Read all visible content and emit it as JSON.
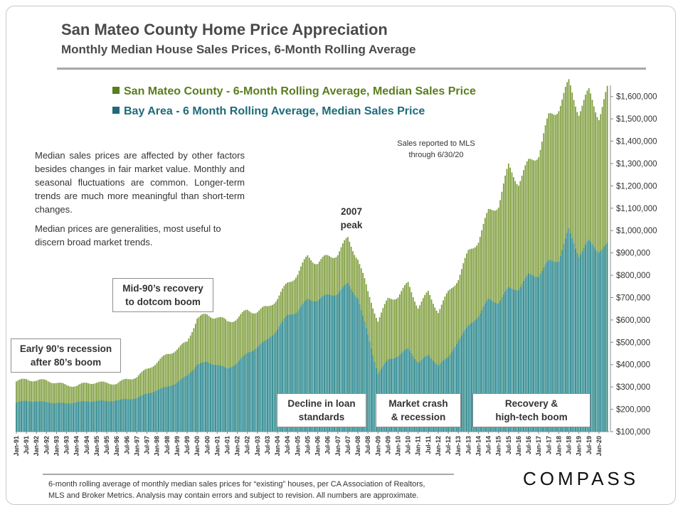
{
  "header": {
    "title": "San Mateo County Home Price Appreciation",
    "subtitle": "Monthly Median House Sales Prices, 6-Month Rolling Average"
  },
  "colors": {
    "san_mateo": "#7a9a35",
    "bay_area": "#2a8a9a"
  },
  "annotations": {
    "mls_line1": "Sales reported to MLS",
    "mls_line2": "through 6/30/20",
    "note_p1": "Median sales prices are affected by other factors besides changes in fair market value. Monthly and seasonal fluctuations are common. Longer-term trends are much more meaningful than short-term changes.",
    "note_p2": "Median prices are generalities, most useful to discern broad market trends.",
    "peak_line1": "2007",
    "peak_line2": "peak",
    "recession_line1": "Early 90’s recession",
    "recession_line2": "after 80’s boom",
    "recovery90s_line1": "Mid-90’s recovery",
    "recovery90s_line2": "to dotcom boom",
    "decline_line1": "Decline in loan",
    "decline_line2": "standards",
    "crash_line1": "Market crash",
    "crash_line2": "& recession",
    "hightech_line1": "Recovery &",
    "hightech_line2": "high-tech boom"
  },
  "footer": {
    "line1": "6-month rolling average of monthly median sales prices for “existing” houses, per CA Association of Realtors,",
    "line2": "MLS and Broker Metrics.  Analysis may contain errors and subject to revision. All numbers are approximate.",
    "logo": "COMPASS"
  },
  "chart_data": {
    "type": "bar",
    "grid": false,
    "x_range": [
      "Jan-91",
      "Jun-20"
    ],
    "ylim": [
      100000,
      1650000
    ],
    "y_ticks": [
      "$100,000",
      "$200,000",
      "$300,000",
      "$400,000",
      "$500,000",
      "$600,000",
      "$700,000",
      "$800,000",
      "$900,000",
      "$1,000,000",
      "$1,100,000",
      "$1,200,000",
      "$1,300,000",
      "$1,400,000",
      "$1,500,000",
      "$1,600,000"
    ],
    "y_tick_values": [
      100000,
      200000,
      300000,
      400000,
      500000,
      600000,
      700000,
      800000,
      900000,
      1000000,
      1100000,
      1200000,
      1300000,
      1400000,
      1500000,
      1600000
    ],
    "x_tick_labels": [
      "Jan-91",
      "Jul-91",
      "Jan-92",
      "Jul-92",
      "Jan-93",
      "Jul-93",
      "Jan-94",
      "Jul-94",
      "Jan-95",
      "Jul-95",
      "Jan-96",
      "Jul-96",
      "Jan-97",
      "Jul-97",
      "Jan-98",
      "Jul-98",
      "Jan-99",
      "Jul-99",
      "Jan-00",
      "Jul-00",
      "Jan-01",
      "Jul-01",
      "Jan-02",
      "Jul-02",
      "Jan-03",
      "Jul-03",
      "Jan-04",
      "Jul-04",
      "Jan-05",
      "Jul-05",
      "Jan-06",
      "Jul-06",
      "Jan-07",
      "Jul-07",
      "Jan-08",
      "Jul-08",
      "Jan-09",
      "Jul-09",
      "Jan-10",
      "Jul-10",
      "Jan-11",
      "Jul-11",
      "Jan-12",
      "Jul-12",
      "Jan-13",
      "Jul-13",
      "Jan-14",
      "Jul-14",
      "Jan-15",
      "Jul-15",
      "Jan-16",
      "Jul-16",
      "Jan-17",
      "Jul-17",
      "Jan-18",
      "Jul-18",
      "Jan-19",
      "Jul-19",
      "Jan-20"
    ],
    "x_tick_values": [
      1991.0,
      1991.5,
      1992.0,
      1992.5,
      1993.0,
      1993.5,
      1994.0,
      1994.5,
      1995.0,
      1995.5,
      1996.0,
      1996.5,
      1997.0,
      1997.5,
      1998.0,
      1998.5,
      1999.0,
      1999.5,
      2000.0,
      2000.5,
      2001.0,
      2001.5,
      2002.0,
      2002.5,
      2003.0,
      2003.5,
      2004.0,
      2004.5,
      2005.0,
      2005.5,
      2006.0,
      2006.5,
      2007.0,
      2007.5,
      2008.0,
      2008.5,
      2009.0,
      2009.5,
      2010.0,
      2010.5,
      2011.0,
      2011.5,
      2012.0,
      2012.5,
      2013.0,
      2013.5,
      2014.0,
      2014.5,
      2015.0,
      2015.5,
      2016.0,
      2016.5,
      2017.0,
      2017.5,
      2018.0,
      2018.5,
      2019.0,
      2019.5,
      2020.0
    ],
    "x": [
      1991.0,
      1991.5,
      1992.0,
      1992.5,
      1993.0,
      1993.5,
      1994.0,
      1994.5,
      1995.0,
      1995.5,
      1996.0,
      1996.5,
      1997.0,
      1997.5,
      1998.0,
      1998.5,
      1999.0,
      1999.5,
      2000.0,
      2000.5,
      2001.0,
      2001.5,
      2002.0,
      2002.5,
      2003.0,
      2003.5,
      2004.0,
      2004.5,
      2005.0,
      2005.5,
      2006.0,
      2006.5,
      2007.0,
      2007.5,
      2008.0,
      2008.5,
      2009.0,
      2009.5,
      2010.0,
      2010.5,
      2011.0,
      2011.5,
      2012.0,
      2012.5,
      2013.0,
      2013.5,
      2014.0,
      2014.5,
      2015.0,
      2015.5,
      2016.0,
      2016.5,
      2017.0,
      2017.5,
      2018.0,
      2018.5,
      2019.0,
      2019.5,
      2020.0,
      2020.42
    ],
    "series": [
      {
        "name": "San Mateo County - 6-Month Rolling Average, Median Sales Price",
        "values": [
          325000,
          335000,
          328000,
          330000,
          318000,
          308000,
          305000,
          318000,
          320000,
          318000,
          315000,
          335000,
          345000,
          380000,
          410000,
          445000,
          470000,
          500000,
          610000,
          620000,
          615000,
          590000,
          610000,
          640000,
          640000,
          655000,
          700000,
          760000,
          810000,
          880000,
          860000,
          880000,
          900000,
          960000,
          880000,
          720000,
          600000,
          690000,
          710000,
          760000,
          660000,
          720000,
          640000,
          720000,
          790000,
          900000,
          960000,
          1080000,
          1120000,
          1280000,
          1220000,
          1300000,
          1350000,
          1500000,
          1560000,
          1650000,
          1540000,
          1610000,
          1520000,
          1620000
        ]
      },
      {
        "name": "Bay Area - 6 Month Rolling Average, Median Sales Price",
        "values": [
          230000,
          238000,
          235000,
          232000,
          228000,
          226000,
          232000,
          235000,
          238000,
          236000,
          240000,
          245000,
          250000,
          270000,
          285000,
          300000,
          320000,
          350000,
          400000,
          410000,
          400000,
          380000,
          410000,
          450000,
          480000,
          510000,
          560000,
          620000,
          640000,
          690000,
          690000,
          710000,
          720000,
          760000,
          700000,
          530000,
          360000,
          420000,
          440000,
          470000,
          410000,
          440000,
          400000,
          430000,
          510000,
          570000,
          620000,
          690000,
          680000,
          740000,
          740000,
          800000,
          800000,
          860000,
          870000,
          1000000,
          890000,
          950000,
          910000,
          935000
        ]
      }
    ]
  }
}
